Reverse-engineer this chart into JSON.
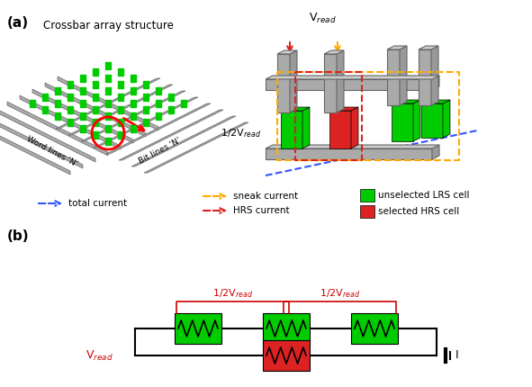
{
  "fig_width": 5.91,
  "fig_height": 4.3,
  "dpi": 100,
  "bg_color": "#ffffff",
  "panel_a_label": "(a)",
  "panel_b_label": "(b)",
  "title_a": "Crossbar array structure",
  "label_wordlines": "Word lines ‘N’",
  "label_bitlines": "Bit lines ‘N’",
  "label_vread": "V$_{read}$",
  "label_half_vread": "1/2V$_{read}$",
  "legend_total": "total current",
  "legend_sneak": "sneak current",
  "legend_hrs": "HRS current",
  "legend_unlrs": "unselected LRS cell",
  "legend_selhrs": "selected HRS cell",
  "color_green": "#00cc00",
  "color_red": "#dd2222",
  "color_orange": "#ffaa00",
  "color_blue": "#3355ff",
  "color_gray": "#aaaaaa",
  "color_darkgray": "#666666",
  "color_vread_red": "#cc0000"
}
